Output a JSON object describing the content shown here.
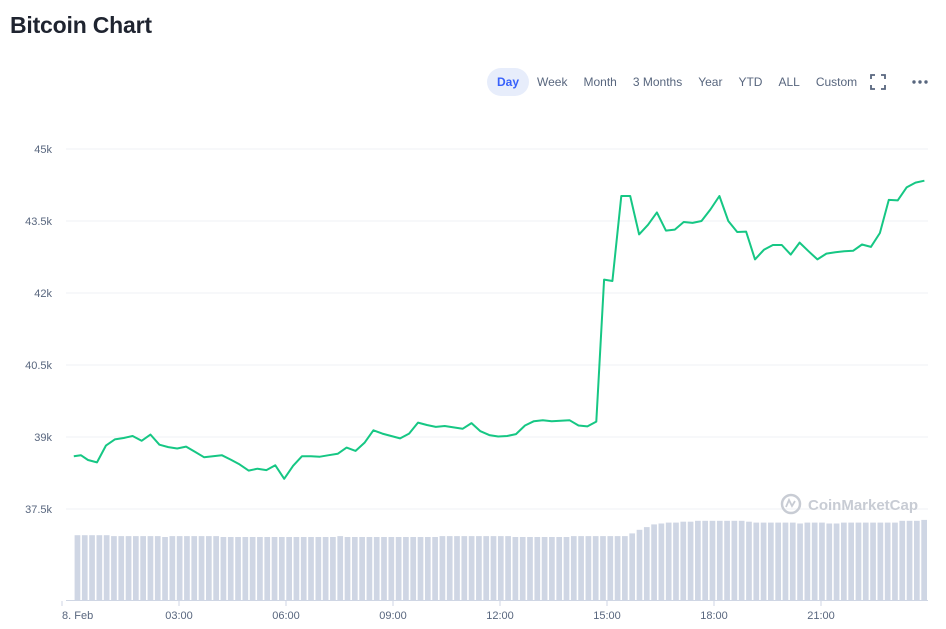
{
  "header": {
    "title": "Bitcoin Chart"
  },
  "toolbar": {
    "ranges": [
      "Day",
      "Week",
      "Month",
      "3 Months",
      "Year",
      "YTD",
      "ALL",
      "Custom"
    ],
    "active": "Day",
    "fullscreen_icon": "fullscreen-icon",
    "more_icon": "more-dots-icon"
  },
  "watermark": "CoinMarketCap",
  "colors": {
    "line": "#16c784",
    "volume": "#cfd6e4",
    "grid": "#eff2f5",
    "accent": "#3861fb"
  },
  "chart_data": {
    "type": "line",
    "title": "Bitcoin Chart",
    "x_range": [
      0,
      24
    ],
    "x_ticks": [
      {
        "label": "8. Feb",
        "x": 0
      },
      {
        "label": "03:00",
        "x": 3
      },
      {
        "label": "06:00",
        "x": 6
      },
      {
        "label": "09:00",
        "x": 9
      },
      {
        "label": "12:00",
        "x": 12
      },
      {
        "label": "15:00",
        "x": 15
      },
      {
        "label": "18:00",
        "x": 18
      },
      {
        "label": "21:00",
        "x": 21
      }
    ],
    "y_range": [
      37500,
      45000
    ],
    "y_ticks": [
      {
        "label": "45k",
        "y": 45000
      },
      {
        "label": "43.5k",
        "y": 43500
      },
      {
        "label": "42k",
        "y": 42000
      },
      {
        "label": "40.5k",
        "y": 40500
      },
      {
        "label": "39k",
        "y": 39000
      },
      {
        "label": "37.5k",
        "y": 37500
      }
    ],
    "grid": true,
    "price": {
      "x": [
        0.05,
        0.25,
        0.45,
        0.7,
        0.95,
        1.2,
        1.45,
        1.7,
        1.95,
        2.2,
        2.45,
        2.7,
        2.95,
        3.2,
        3.45,
        3.7,
        3.95,
        4.2,
        4.45,
        4.7,
        4.95,
        5.2,
        5.45,
        5.7,
        5.95,
        6.2,
        6.45,
        6.7,
        6.95,
        7.2,
        7.45,
        7.7,
        7.95,
        8.2,
        8.45,
        8.7,
        8.95,
        9.2,
        9.45,
        9.7,
        9.95,
        10.2,
        10.45,
        10.7,
        10.95,
        11.2,
        11.45,
        11.7,
        11.95,
        12.2,
        12.45,
        12.7,
        12.95,
        13.2,
        13.45,
        13.7,
        13.95,
        14.2,
        14.45,
        14.7,
        14.92,
        15.15,
        15.4,
        15.65,
        15.9,
        16.15,
        16.4,
        16.65,
        16.9,
        17.15,
        17.4,
        17.65,
        17.9,
        18.15,
        18.4,
        18.65,
        18.9,
        19.15,
        19.4,
        19.65,
        19.9,
        20.15,
        20.4,
        20.65,
        20.9,
        21.15,
        21.4,
        21.65,
        21.9,
        22.15,
        22.4,
        22.65,
        22.9,
        23.15,
        23.4,
        23.65,
        23.9
      ],
      "y": [
        38600,
        38620,
        38520,
        38470,
        38820,
        38950,
        38980,
        39020,
        38920,
        39050,
        38840,
        38790,
        38760,
        38800,
        38690,
        38580,
        38600,
        38620,
        38530,
        38430,
        38300,
        38340,
        38310,
        38410,
        38130,
        38400,
        38600,
        38600,
        38590,
        38620,
        38650,
        38780,
        38710,
        38880,
        39140,
        39070,
        39020,
        38970,
        39070,
        39300,
        39250,
        39210,
        39230,
        39200,
        39170,
        39290,
        39120,
        39040,
        39010,
        39020,
        39060,
        39240,
        39330,
        39350,
        39330,
        39340,
        39350,
        39240,
        39220,
        39320,
        42280,
        42250,
        44020,
        44020,
        43220,
        43420,
        43680,
        43300,
        43320,
        43480,
        43460,
        43500,
        43740,
        44020,
        43500,
        43270,
        43280,
        42700,
        42900,
        43000,
        43000,
        42800,
        43050,
        42870,
        42700,
        42820,
        42850,
        42870,
        42880,
        43010,
        42960,
        43250,
        43940,
        43930,
        44200,
        44300,
        44340
      ],
      "color": "#16c784"
    },
    "volume": {
      "bars": 117,
      "relative_height": [
        0.72,
        0.72,
        0.72,
        0.72,
        0.72,
        0.71,
        0.71,
        0.71,
        0.71,
        0.71,
        0.71,
        0.71,
        0.7,
        0.71,
        0.71,
        0.71,
        0.71,
        0.71,
        0.71,
        0.71,
        0.7,
        0.7,
        0.7,
        0.7,
        0.7,
        0.7,
        0.7,
        0.7,
        0.7,
        0.7,
        0.7,
        0.7,
        0.7,
        0.7,
        0.7,
        0.7,
        0.71,
        0.7,
        0.7,
        0.7,
        0.7,
        0.7,
        0.7,
        0.7,
        0.7,
        0.7,
        0.7,
        0.7,
        0.7,
        0.7,
        0.71,
        0.71,
        0.71,
        0.71,
        0.71,
        0.71,
        0.71,
        0.71,
        0.71,
        0.71,
        0.7,
        0.7,
        0.7,
        0.7,
        0.7,
        0.7,
        0.7,
        0.7,
        0.71,
        0.71,
        0.71,
        0.71,
        0.71,
        0.71,
        0.71,
        0.71,
        0.74,
        0.78,
        0.81,
        0.84,
        0.85,
        0.86,
        0.86,
        0.87,
        0.87,
        0.88,
        0.88,
        0.88,
        0.88,
        0.88,
        0.88,
        0.88,
        0.87,
        0.86,
        0.86,
        0.86,
        0.86,
        0.86,
        0.86,
        0.85,
        0.86,
        0.86,
        0.86,
        0.85,
        0.85,
        0.86,
        0.86,
        0.86,
        0.86,
        0.86,
        0.86,
        0.86,
        0.86,
        0.88,
        0.88,
        0.88,
        0.89
      ],
      "color": "#cfd6e4"
    }
  }
}
